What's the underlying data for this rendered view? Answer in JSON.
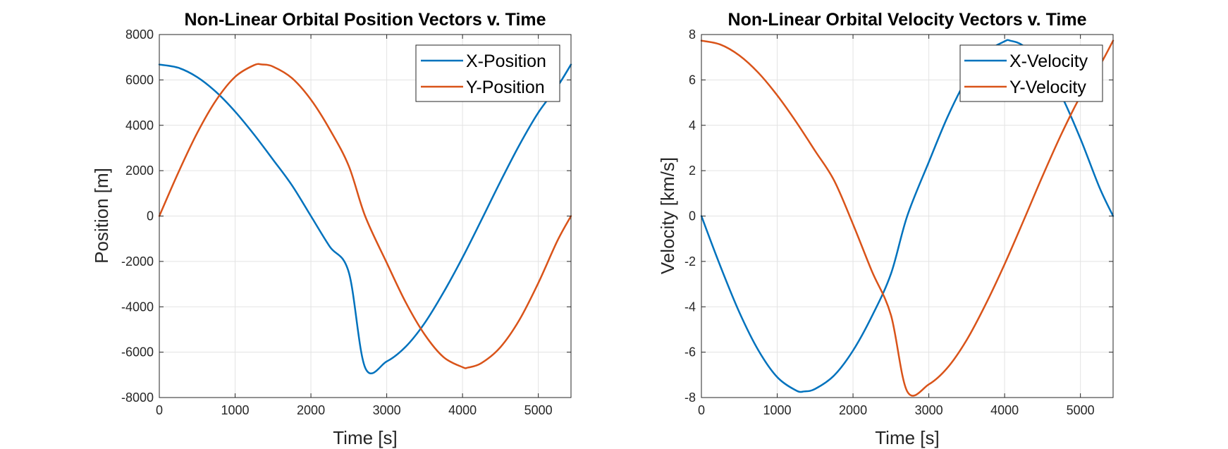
{
  "chart_data": [
    {
      "type": "line",
      "title": "Non-Linear Orbital Position Vectors v. Time",
      "xlabel": "Time [s]",
      "ylabel": "Position [m]",
      "xlim": [
        0,
        5431
      ],
      "ylim": [
        -8000,
        8000
      ],
      "xticks": [
        "0",
        "1000",
        "2000",
        "3000",
        "4000",
        "5000"
      ],
      "xtick_values": [
        0,
        1000,
        2000,
        3000,
        4000,
        5000
      ],
      "yticks": [
        "8000",
        "6000",
        "4000",
        "2000",
        "0",
        "-2000",
        "-4000",
        "-6000",
        "-8000"
      ],
      "ytick_values": [
        8000,
        6000,
        4000,
        2000,
        0,
        -2000,
        -4000,
        -6000,
        -8000
      ],
      "grid": true,
      "legend_location": "top-right",
      "series": [
        {
          "name": "X-Position",
          "color": "#0072BD",
          "x": [
            0,
            250,
            500,
            750,
            1000,
            1250,
            1500,
            1750,
            2000,
            2250,
            2500,
            2715,
            3000,
            3250,
            3500,
            3750,
            4000,
            4250,
            4500,
            4750,
            5000,
            5250,
            5431
          ],
          "y": [
            6678,
            6536,
            6123,
            5465,
            4603,
            3591,
            2485,
            1354,
            0,
            -1354,
            -2485,
            -6678,
            -6409,
            -5760,
            -4720,
            -3361,
            -1829,
            -169,
            1520,
            3130,
            4560,
            5699,
            6678
          ]
        },
        {
          "name": "Y-Position",
          "color": "#D95319",
          "x": [
            0,
            250,
            500,
            750,
            1000,
            1250,
            1358,
            1500,
            1750,
            2000,
            2250,
            2500,
            2715,
            3000,
            3250,
            3500,
            3750,
            4000,
            4073,
            4250,
            4500,
            4750,
            5000,
            5250,
            5431
          ],
          "y": [
            0,
            1912,
            3663,
            5108,
            6136,
            6650,
            6678,
            6588,
            6080,
            5130,
            3810,
            2200,
            0,
            -2060,
            -3800,
            -5220,
            -6220,
            -6660,
            -6678,
            -6480,
            -5780,
            -4580,
            -2950,
            -1100,
            0
          ]
        }
      ]
    },
    {
      "type": "line",
      "title": "Non-Linear Orbital Velocity Vectors v. Time",
      "xlabel": "Time [s]",
      "ylabel": "Velocity [km/s]",
      "xlim": [
        0,
        5431
      ],
      "ylim": [
        -8,
        8
      ],
      "xticks": [
        "0",
        "1000",
        "2000",
        "3000",
        "4000",
        "5000"
      ],
      "xtick_values": [
        0,
        1000,
        2000,
        3000,
        4000,
        5000
      ],
      "yticks": [
        "8",
        "6",
        "4",
        "2",
        "0",
        "-2",
        "-4",
        "-6",
        "-8"
      ],
      "ytick_values": [
        8,
        6,
        4,
        2,
        0,
        -2,
        -4,
        -6,
        -8
      ],
      "grid": true,
      "legend_location": "top-right",
      "series": [
        {
          "name": "X-Velocity",
          "color": "#0072BD",
          "x": [
            0,
            250,
            500,
            750,
            1000,
            1250,
            1358,
            1500,
            1750,
            2000,
            2250,
            2500,
            2715,
            3000,
            3250,
            3500,
            3750,
            4000,
            4073,
            4250,
            4500,
            4750,
            5000,
            5250,
            5431
          ],
          "y": [
            0,
            -2.21,
            -4.24,
            -5.91,
            -7.1,
            -7.69,
            -7.73,
            -7.62,
            -7.03,
            -5.93,
            -4.41,
            -2.55,
            0,
            2.38,
            4.39,
            6.04,
            7.19,
            7.7,
            7.73,
            7.5,
            6.69,
            5.3,
            3.41,
            1.27,
            0
          ]
        },
        {
          "name": "Y-Velocity",
          "color": "#D95319",
          "x": [
            0,
            250,
            500,
            750,
            1000,
            1250,
            1500,
            1750,
            2000,
            2250,
            2500,
            2715,
            3000,
            3250,
            3500,
            3750,
            4000,
            4250,
            4500,
            4750,
            5000,
            5250,
            5431
          ],
          "y": [
            7.73,
            7.56,
            7.08,
            6.32,
            5.32,
            4.15,
            2.87,
            1.57,
            -0.36,
            -2.44,
            -4.36,
            -7.73,
            -7.42,
            -6.67,
            -5.46,
            -3.89,
            -2.12,
            -0.2,
            1.76,
            3.62,
            5.28,
            6.6,
            7.73
          ]
        }
      ]
    }
  ]
}
